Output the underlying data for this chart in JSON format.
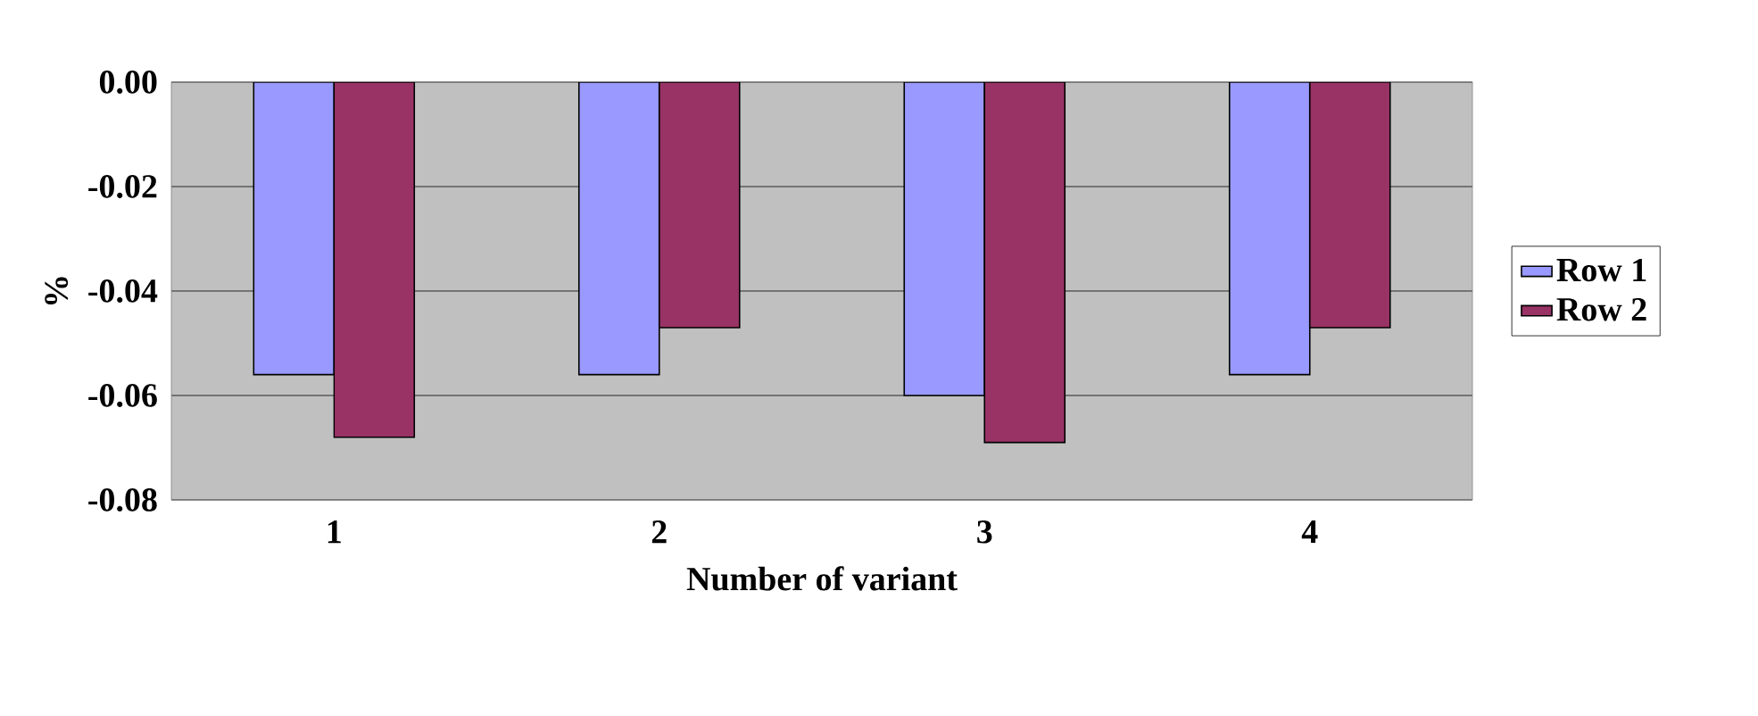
{
  "chart_data": {
    "type": "bar",
    "xlabel": "Number of variant",
    "ylabel": "%",
    "categories": [
      "1",
      "2",
      "3",
      "4"
    ],
    "series": [
      {
        "name": "Row 1",
        "color": "#9999ff",
        "values": [
          -0.056,
          -0.056,
          -0.06,
          -0.056
        ]
      },
      {
        "name": "Row 2",
        "color": "#993366",
        "values": [
          -0.068,
          -0.047,
          -0.069,
          -0.047
        ]
      }
    ],
    "ylim": [
      -0.08,
      0
    ],
    "yticks": [
      {
        "value": -0.08,
        "label": "-0.08"
      },
      {
        "value": -0.06,
        "label": "-0.06"
      },
      {
        "value": -0.04,
        "label": "-0.04"
      },
      {
        "value": -0.02,
        "label": "-0.02"
      },
      {
        "value": 0,
        "label": "0.00"
      }
    ],
    "grid": "y",
    "legend": "right"
  }
}
